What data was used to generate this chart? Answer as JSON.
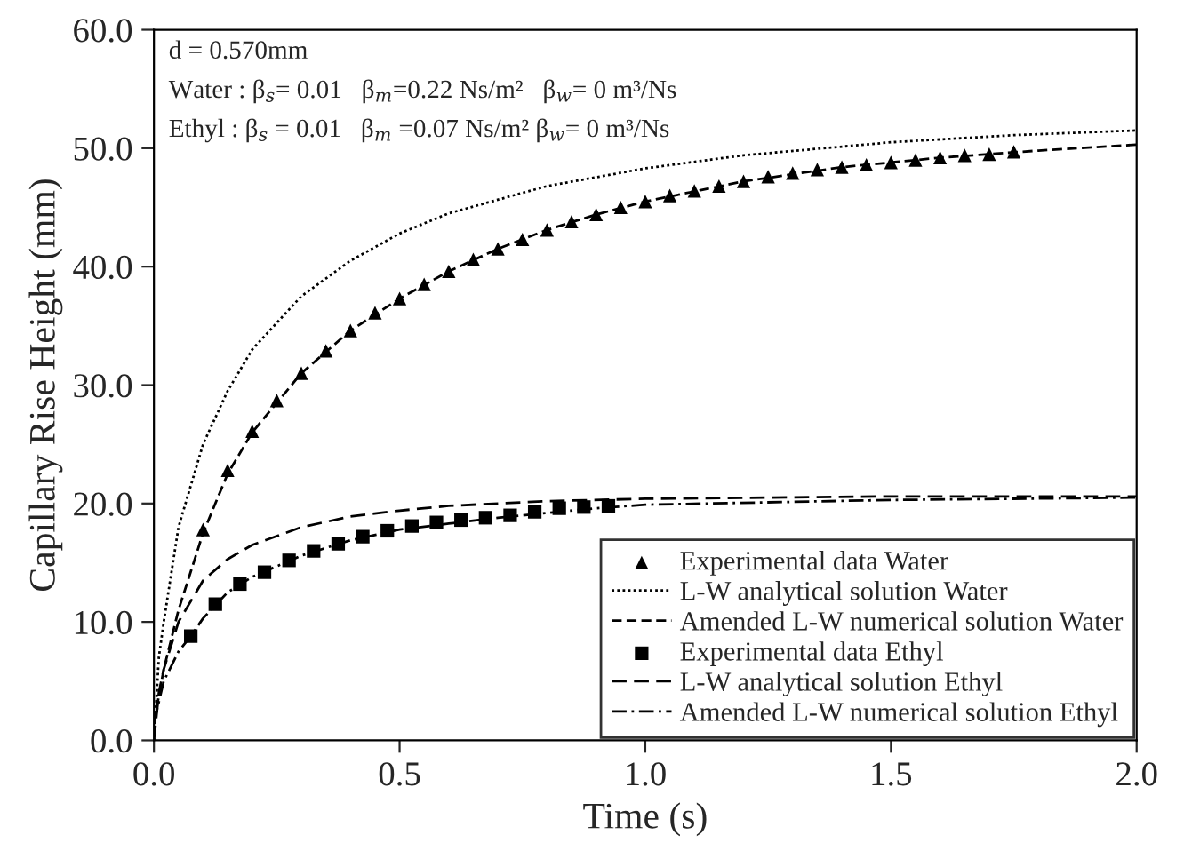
{
  "chart_data": {
    "type": "line",
    "xlabel": "Time (s)",
    "ylabel": "Capillary Rise Height (mm)",
    "xlim": [
      0,
      2.0
    ],
    "ylim": [
      0,
      60
    ],
    "xticks": [
      {
        "value": 0,
        "label": "0.0"
      },
      {
        "value": 0.5,
        "label": "0.5"
      },
      {
        "value": 1.0,
        "label": "1.0"
      },
      {
        "value": 1.5,
        "label": "1.5"
      },
      {
        "value": 2.0,
        "label": "2.0"
      }
    ],
    "yticks": [
      {
        "value": 0,
        "label": "0.0"
      },
      {
        "value": 10,
        "label": "10.0"
      },
      {
        "value": 20,
        "label": "20.0"
      },
      {
        "value": 30,
        "label": "30.0"
      },
      {
        "value": 40,
        "label": "40.0"
      },
      {
        "value": 50,
        "label": "50.0"
      },
      {
        "value": 60,
        "label": "60.0"
      }
    ],
    "grid": false,
    "legend": "bottom right",
    "annotations": [
      "d = 0.570mm",
      "Water : β$_{s}$= 0.01   β$_{m}$=0.22 Ns/m²   β$_{w}$= 0 m³/Ns",
      "Ethyl : β$_{s}$ = 0.01   β$_{m}$ =0.07 Ns/m² β$_{w}$= 0 m³/Ns"
    ],
    "series": [
      {
        "name": "Experimental data Water",
        "type": "scatter",
        "marker": "triangle",
        "color": "#000000",
        "x": [
          0.1,
          0.15,
          0.2,
          0.25,
          0.3,
          0.35,
          0.4,
          0.45,
          0.5,
          0.55,
          0.6,
          0.65,
          0.7,
          0.75,
          0.8,
          0.85,
          0.9,
          0.95,
          1.0,
          1.05,
          1.1,
          1.15,
          1.2,
          1.25,
          1.3,
          1.35,
          1.4,
          1.45,
          1.5,
          1.55,
          1.6,
          1.65,
          1.7,
          1.75
        ],
        "values": [
          17.8,
          22.8,
          26.1,
          28.7,
          31.0,
          32.9,
          34.6,
          36.1,
          37.3,
          38.5,
          39.6,
          40.6,
          41.5,
          42.3,
          43.1,
          43.8,
          44.4,
          45.0,
          45.5,
          46.0,
          46.4,
          46.8,
          47.2,
          47.6,
          47.9,
          48.2,
          48.4,
          48.6,
          48.8,
          49.0,
          49.2,
          49.4,
          49.5,
          49.7
        ]
      },
      {
        "name": "L-W analytical solution Water",
        "line_style": "dotted",
        "color": "#000000",
        "x": [
          0,
          0.01,
          0.02,
          0.05,
          0.1,
          0.15,
          0.2,
          0.3,
          0.4,
          0.5,
          0.6,
          0.8,
          1.0,
          1.2,
          1.5,
          1.75,
          2.0
        ],
        "values": [
          0,
          7,
          10,
          18,
          25,
          29.5,
          33,
          37.5,
          40.5,
          42.8,
          44.5,
          46.8,
          48.3,
          49.4,
          50.5,
          51.1,
          51.5
        ]
      },
      {
        "name": "Amended L-W numerical solution Water",
        "line_style": "dashed",
        "color": "#000000",
        "x": [
          0,
          0.02,
          0.05,
          0.1,
          0.15,
          0.2,
          0.3,
          0.4,
          0.5,
          0.6,
          0.7,
          0.8,
          0.9,
          1.0,
          1.2,
          1.4,
          1.6,
          1.8,
          2.0
        ],
        "values": [
          1.5,
          6,
          11,
          17.5,
          22.5,
          26,
          31.0,
          34.6,
          37.3,
          39.6,
          41.5,
          43.1,
          44.4,
          45.5,
          47.2,
          48.4,
          49.2,
          49.8,
          50.3
        ]
      },
      {
        "name": "Experimental data Ethyl",
        "type": "scatter",
        "marker": "square",
        "color": "#000000",
        "x": [
          0.075,
          0.125,
          0.175,
          0.225,
          0.275,
          0.325,
          0.375,
          0.425,
          0.475,
          0.525,
          0.575,
          0.625,
          0.675,
          0.725,
          0.775,
          0.825,
          0.875,
          0.925
        ],
        "values": [
          8.8,
          11.5,
          13.2,
          14.2,
          15.2,
          16.0,
          16.6,
          17.2,
          17.7,
          18.1,
          18.4,
          18.6,
          18.8,
          19.0,
          19.3,
          19.6,
          19.7,
          19.8
        ]
      },
      {
        "name": "L-W analytical solution Ethyl",
        "line_style": "longdash",
        "color": "#000000",
        "x": [
          0,
          0.01,
          0.02,
          0.05,
          0.1,
          0.15,
          0.2,
          0.3,
          0.4,
          0.5,
          0.6,
          0.8,
          1.0,
          1.5,
          2.0
        ],
        "values": [
          0,
          4,
          6,
          10,
          13.5,
          15.3,
          16.5,
          18.0,
          18.9,
          19.4,
          19.8,
          20.2,
          20.4,
          20.6,
          20.6
        ]
      },
      {
        "name": "Amended L-W numerical solution Ethyl",
        "line_style": "dashdot",
        "color": "#000000",
        "x": [
          0,
          0.02,
          0.05,
          0.075,
          0.1,
          0.15,
          0.2,
          0.3,
          0.4,
          0.5,
          0.6,
          0.7,
          0.8,
          0.9,
          1.0,
          1.5,
          2.0
        ],
        "values": [
          1.5,
          5,
          7.5,
          8.8,
          10.3,
          12.5,
          13.8,
          15.6,
          16.9,
          17.8,
          18.3,
          18.8,
          19.2,
          19.6,
          19.9,
          20.3,
          20.5
        ]
      }
    ]
  }
}
